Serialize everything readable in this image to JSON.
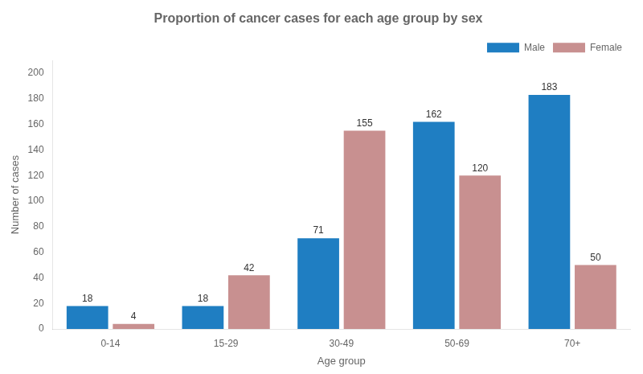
{
  "chart_data": {
    "type": "bar",
    "title": "Proportion of cancer cases for each age group by sex",
    "xlabel": "Age group",
    "ylabel": "Number of cases",
    "categories": [
      "0-14",
      "15-29",
      "30-49",
      "50-69",
      "70+"
    ],
    "series": [
      {
        "name": "Male",
        "color": "#1F7EC2",
        "values": [
          18,
          18,
          71,
          162,
          183
        ]
      },
      {
        "name": "Female",
        "color": "#C89090",
        "values": [
          4,
          42,
          155,
          120,
          50
        ]
      }
    ],
    "ylim": [
      0,
      210
    ],
    "yticks": [
      0,
      20,
      40,
      60,
      80,
      100,
      120,
      140,
      160,
      180,
      200
    ],
    "grid": false,
    "legend": "upper right",
    "data_labels": true
  }
}
